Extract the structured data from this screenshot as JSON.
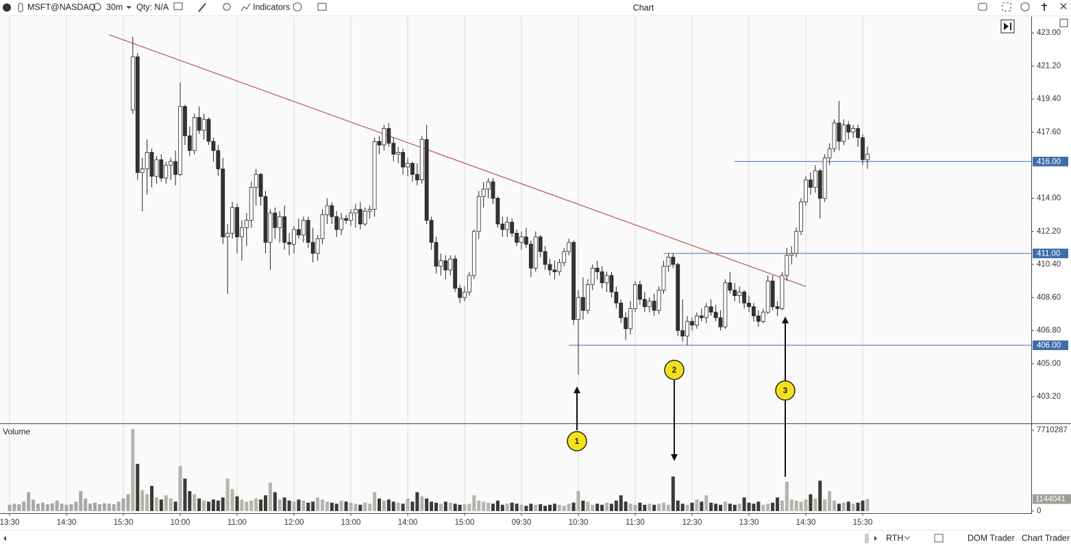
{
  "toolbar": {
    "symbol": "MSFT@NASDAQ",
    "interval": "30m",
    "qty": "Qty: N/A",
    "indicators": "Indicators",
    "title": "Chart"
  },
  "statusbar": {
    "session": "RTH",
    "dom": "DOM Trader",
    "trader": "Chart Trader"
  },
  "chart_data": {
    "type": "candlestick",
    "volume_label": "Volume",
    "categories": [
      "13:30",
      null,
      null,
      null,
      null,
      null,
      null,
      null,
      null,
      null,
      null,
      null,
      "14:30",
      null,
      null,
      null,
      null,
      null,
      null,
      null,
      null,
      null,
      null,
      null,
      "15:30",
      null,
      null,
      null,
      null,
      null,
      null,
      null,
      null,
      null,
      null,
      null,
      "10:00",
      null,
      null,
      null,
      null,
      null,
      null,
      null,
      null,
      null,
      null,
      null,
      "11:00",
      null,
      null,
      null,
      null,
      null,
      null,
      null,
      null,
      null,
      null,
      null,
      "12:00",
      null,
      null,
      null,
      null,
      null,
      null,
      null,
      null,
      null,
      null,
      null,
      "13:00",
      null,
      null,
      null,
      null,
      null,
      null,
      null,
      null,
      null,
      null,
      null,
      "14:00",
      null,
      null,
      null,
      null,
      null,
      null,
      null,
      null,
      null,
      null,
      null,
      "15:00",
      null,
      null,
      null,
      null,
      null,
      null,
      null,
      null,
      null,
      null,
      null,
      "09:30",
      null,
      null,
      null,
      null,
      null,
      null,
      null,
      null,
      null,
      null,
      null,
      "10:30",
      null,
      null,
      null,
      null,
      null,
      null,
      null,
      null,
      null,
      null,
      null,
      "11:30",
      null,
      null,
      null,
      null,
      null,
      null,
      null,
      null,
      null,
      null,
      null,
      "12:30",
      null,
      null,
      null,
      null,
      null,
      null,
      null,
      null,
      null,
      null,
      null,
      "13:30",
      null,
      null,
      null,
      null,
      null,
      null,
      null,
      null,
      null,
      null,
      null,
      "14:30",
      null,
      null,
      null,
      null,
      null,
      null,
      null,
      null,
      null,
      null,
      null,
      "15:30",
      null
    ],
    "open": [
      null,
      null,
      null,
      null,
      null,
      null,
      null,
      null,
      null,
      null,
      null,
      null,
      null,
      null,
      null,
      null,
      null,
      null,
      null,
      null,
      null,
      null,
      null,
      null,
      null,
      null,
      418.8,
      421.7,
      415.4,
      415.6,
      416.5,
      415.2,
      416.1,
      415.1,
      415.8,
      416.0,
      415.3,
      419.0,
      417.4,
      416.6,
      418.4,
      417.7,
      418.3,
      417.1,
      416.6,
      415.6,
      411.9,
      412.1,
      413.5,
      411.9,
      412.4,
      412.8,
      414.6,
      415.3,
      414.1,
      411.6,
      413.2,
      412.4,
      413.0,
      411.6,
      411.5,
      412.3,
      412.0,
      412.8,
      411.6,
      411.0,
      411.8,
      413.1,
      413.6,
      413.0,
      412.3,
      412.9,
      412.8,
      413.2,
      413.4,
      412.6,
      413.3,
      413.4,
      417.1,
      416.9,
      417.8,
      417.0,
      416.4,
      416.5,
      415.7,
      415.9,
      415.3,
      415.0,
      417.2,
      412.8,
      411.6,
      410.3,
      410.6,
      410.1,
      410.7,
      409.1,
      408.6,
      408.9,
      409.8,
      412.2,
      414.1,
      414.5,
      414.9,
      414.0,
      412.6,
      412.3,
      412.7,
      412.1,
      411.6,
      411.9,
      411.5,
      410.2,
      411.9,
      411.1,
      410.4,
      410.1,
      410.0,
      410.5,
      411.1,
      411.6,
      407.4,
      408.6,
      407.9,
      409.3,
      410.2,
      410.0,
      409.4,
      409.8,
      408.9,
      408.3,
      407.5,
      406.9,
      408.0,
      409.3,
      408.5,
      408.1,
      408.4,
      407.9,
      409.0,
      410.3,
      410.8,
      410.4,
      406.8,
      406.5,
      407.3,
      407.1,
      407.6,
      407.5,
      408.1,
      407.8,
      407.5,
      407.0,
      409.4,
      409.0,
      408.7,
      408.9,
      408.3,
      408.1,
      407.6,
      407.3,
      407.8,
      409.5,
      408.1,
      408.0,
      409.8,
      410.9,
      411.0,
      412.2,
      413.8,
      415.0,
      414.6,
      415.5,
      414.0,
      416.2,
      416.7,
      418.1,
      417.1,
      418.0,
      417.6,
      417.8,
      417.3,
      416.1
    ],
    "high": [
      null,
      null,
      null,
      null,
      null,
      null,
      null,
      null,
      null,
      null,
      null,
      null,
      null,
      null,
      null,
      null,
      null,
      null,
      null,
      null,
      null,
      null,
      null,
      null,
      null,
      null,
      422.8,
      421.9,
      416.2,
      417.2,
      416.7,
      416.3,
      416.4,
      416.0,
      416.2,
      416.6,
      420.3,
      419.1,
      417.9,
      418.6,
      419.0,
      418.6,
      418.4,
      417.3,
      416.9,
      416.2,
      412.6,
      413.8,
      413.7,
      412.8,
      413.2,
      414.9,
      415.6,
      415.4,
      414.4,
      413.4,
      413.5,
      413.3,
      413.6,
      412.1,
      412.5,
      412.9,
      413.0,
      413.0,
      412.4,
      412.0,
      413.4,
      414.0,
      413.8,
      413.3,
      413.2,
      413.1,
      413.4,
      413.7,
      413.8,
      413.5,
      413.6,
      417.3,
      417.4,
      418.0,
      418.1,
      417.3,
      416.8,
      416.7,
      416.2,
      416.0,
      415.9,
      417.4,
      418.0,
      413.0,
      411.9,
      411.0,
      410.9,
      410.9,
      410.9,
      409.3,
      409.2,
      410.0,
      412.3,
      414.4,
      414.9,
      415.1,
      415.1,
      414.1,
      413.0,
      413.0,
      412.9,
      412.3,
      412.2,
      412.4,
      411.7,
      412.2,
      412.0,
      411.4,
      410.7,
      410.6,
      410.7,
      411.3,
      411.8,
      411.7,
      409.0,
      409.7,
      409.6,
      410.4,
      410.6,
      410.3,
      410.0,
      410.0,
      409.2,
      408.5,
      407.8,
      408.4,
      409.5,
      409.5,
      408.9,
      408.6,
      408.8,
      409.2,
      410.6,
      411.0,
      411.0,
      410.5,
      408.5,
      407.6,
      407.5,
      407.8,
      408.0,
      408.3,
      408.5,
      408.2,
      407.9,
      409.6,
      410.0,
      409.4,
      409.2,
      409.0,
      408.7,
      408.3,
      407.9,
      408.0,
      409.8,
      409.8,
      408.4,
      410.0,
      411.3,
      411.4,
      412.4,
      414.0,
      415.2,
      415.4,
      415.8,
      415.6,
      416.4,
      417.0,
      418.3,
      419.3,
      418.3,
      418.2,
      418.0,
      418.0,
      417.5,
      416.8
    ],
    "low": [
      null,
      null,
      null,
      null,
      null,
      null,
      null,
      null,
      null,
      null,
      null,
      null,
      null,
      null,
      null,
      null,
      null,
      null,
      null,
      null,
      null,
      null,
      null,
      null,
      null,
      null,
      418.6,
      415.0,
      413.3,
      414.2,
      414.6,
      414.8,
      414.9,
      414.8,
      415.0,
      414.7,
      415.2,
      416.9,
      416.3,
      416.4,
      417.5,
      417.2,
      416.9,
      416.0,
      415.2,
      411.5,
      408.8,
      411.8,
      411.0,
      410.6,
      411.4,
      412.4,
      413.6,
      413.6,
      411.0,
      410.1,
      411.8,
      411.6,
      411.2,
      410.9,
      411.0,
      411.8,
      411.6,
      411.3,
      410.5,
      410.6,
      411.5,
      412.6,
      412.6,
      411.9,
      412.0,
      412.6,
      412.5,
      412.4,
      412.3,
      412.5,
      412.9,
      413.0,
      416.4,
      416.6,
      416.8,
      416.0,
      415.9,
      415.3,
      415.2,
      414.9,
      414.7,
      414.8,
      412.6,
      411.2,
      409.9,
      409.8,
      409.6,
      409.8,
      408.9,
      408.3,
      408.4,
      408.7,
      409.6,
      411.8,
      413.5,
      414.0,
      413.7,
      412.4,
      411.9,
      411.9,
      411.9,
      411.4,
      411.2,
      411.3,
      409.7,
      410.0,
      410.8,
      410.1,
      409.8,
      409.6,
      409.8,
      410.3,
      410.9,
      407.1,
      404.4,
      407.4,
      407.7,
      409.0,
      409.6,
      409.1,
      408.9,
      408.6,
      408.0,
      407.2,
      406.3,
      406.6,
      407.8,
      408.2,
      407.8,
      407.8,
      407.6,
      407.7,
      408.8,
      410.0,
      410.2,
      406.5,
      406.2,
      406.0,
      406.8,
      406.9,
      407.3,
      407.2,
      407.6,
      407.3,
      406.8,
      406.9,
      408.8,
      408.4,
      408.3,
      408.0,
      407.8,
      407.3,
      407.0,
      407.2,
      407.7,
      407.9,
      407.6,
      407.9,
      409.5,
      410.4,
      410.8,
      412.0,
      413.6,
      414.2,
      414.3,
      412.9,
      413.8,
      415.8,
      416.5,
      416.6,
      416.9,
      417.2,
      417.3,
      416.8,
      415.8,
      415.6
    ],
    "close": [
      null,
      null,
      null,
      null,
      null,
      null,
      null,
      null,
      null,
      null,
      null,
      null,
      null,
      null,
      null,
      null,
      null,
      null,
      null,
      null,
      null,
      null,
      null,
      null,
      null,
      null,
      421.7,
      415.4,
      415.6,
      416.5,
      415.2,
      416.1,
      415.1,
      415.8,
      416.0,
      415.3,
      419.0,
      417.4,
      416.6,
      418.4,
      417.7,
      418.3,
      417.1,
      416.6,
      415.6,
      411.9,
      412.1,
      413.5,
      411.9,
      412.4,
      412.8,
      414.6,
      415.3,
      414.1,
      411.6,
      413.2,
      412.4,
      413.0,
      411.6,
      411.5,
      412.3,
      412.0,
      412.8,
      411.6,
      411.0,
      411.8,
      413.1,
      413.6,
      413.0,
      412.3,
      412.9,
      412.8,
      413.2,
      413.4,
      412.6,
      413.3,
      413.4,
      417.1,
      416.9,
      417.8,
      417.0,
      416.4,
      416.5,
      415.7,
      415.9,
      415.3,
      415.0,
      417.2,
      412.8,
      411.6,
      410.3,
      410.6,
      410.1,
      410.7,
      409.1,
      408.6,
      408.9,
      409.8,
      412.2,
      414.1,
      414.5,
      414.9,
      414.0,
      412.6,
      412.3,
      412.7,
      412.1,
      411.6,
      411.9,
      411.5,
      410.2,
      411.9,
      411.1,
      410.4,
      410.1,
      410.0,
      410.5,
      411.1,
      411.6,
      407.4,
      408.6,
      407.9,
      409.3,
      410.2,
      410.0,
      409.4,
      409.8,
      408.9,
      408.3,
      407.5,
      406.9,
      408.0,
      409.3,
      408.5,
      408.1,
      408.4,
      407.9,
      409.0,
      410.3,
      410.8,
      410.4,
      406.8,
      406.5,
      407.3,
      407.1,
      407.6,
      407.5,
      408.1,
      407.8,
      407.5,
      407.0,
      409.4,
      409.0,
      408.7,
      408.9,
      408.3,
      408.1,
      407.6,
      407.3,
      407.8,
      409.5,
      408.1,
      408.0,
      409.8,
      410.9,
      411.0,
      412.2,
      413.8,
      415.0,
      414.6,
      415.5,
      414.0,
      416.2,
      416.7,
      418.1,
      417.1,
      418.0,
      417.6,
      417.8,
      417.3,
      416.1,
      416.4
    ],
    "volume": [
      600000,
      700000,
      650000,
      900000,
      1800000,
      1100000,
      700000,
      800000,
      650000,
      750000,
      1000000,
      700000,
      600000,
      650000,
      900000,
      1900000,
      1200000,
      700000,
      800000,
      650000,
      750000,
      700000,
      650000,
      900000,
      1200000,
      1600000,
      7800000,
      4500000,
      2000000,
      1600000,
      2400000,
      1300000,
      1100000,
      1500000,
      1200000,
      900000,
      4300000,
      3100000,
      1900000,
      1600000,
      1200000,
      1000000,
      900000,
      1100000,
      1000000,
      1300000,
      3100000,
      2100000,
      1400000,
      1100000,
      900000,
      1000000,
      1200000,
      1100000,
      1500000,
      2700000,
      1800000,
      1100000,
      1300000,
      1000000,
      900000,
      1100000,
      1000000,
      800000,
      900000,
      1300000,
      1100000,
      900000,
      800000,
      700000,
      1000000,
      900000,
      800000,
      700000,
      600000,
      800000,
      700000,
      1800000,
      1200000,
      1000000,
      1100000,
      900000,
      800000,
      700000,
      1200000,
      900000,
      1800000,
      1400000,
      1200000,
      900000,
      800000,
      700000,
      900000,
      800000,
      700000,
      600000,
      650000,
      700000,
      1500000,
      1000000,
      900000,
      800000,
      700000,
      1000000,
      600000,
      700000,
      800000,
      700000,
      600000,
      500000,
      700000,
      600000,
      650000,
      500000,
      600000,
      700000,
      600000,
      500000,
      700000,
      800000,
      1900000,
      1000000,
      900000,
      600000,
      700000,
      600000,
      800000,
      700000,
      1000000,
      1500000,
      900000,
      700000,
      600000,
      800000,
      600000,
      700000,
      600000,
      700000,
      800000,
      600000,
      3300000,
      1000000,
      700000,
      600000,
      800000,
      1100000,
      900000,
      1500000,
      800000,
      700000,
      600000,
      900000,
      700000,
      600000,
      700000,
      1300000,
      800000,
      700000,
      900000,
      600000,
      700000,
      800000,
      1300000,
      1000000,
      2800000,
      1100000,
      1000000,
      900000,
      1100000,
      1600000,
      1200000,
      2900000,
      1100000,
      1900000,
      1000000,
      700000,
      800000,
      900000,
      700000,
      800000,
      1000000,
      1144041
    ],
    "ylim": [
      401.75,
      423.86
    ],
    "yticks": [
      {
        "value": 423,
        "label": "423.00"
      },
      {
        "value": 421.2,
        "label": "421.20"
      },
      {
        "value": 419.4,
        "label": "419.40"
      },
      {
        "value": 417.6,
        "label": "417.60"
      },
      {
        "value": 414,
        "label": "414.00"
      },
      {
        "value": 412.2,
        "label": "412.20"
      },
      {
        "value": 410.4,
        "label": "410.40"
      },
      {
        "value": 408.6,
        "label": "408.60"
      },
      {
        "value": 406.8,
        "label": "406.80"
      },
      {
        "value": 405,
        "label": "405.00"
      },
      {
        "value": 403.2,
        "label": "403.20"
      }
    ],
    "vlim": [
      0,
      8233000
    ],
    "vticks": [
      0,
      7710287
    ],
    "xgrid": true,
    "up_color": "#ffffff",
    "down_color": "#333333",
    "line_color": "#222222",
    "levels": [
      {
        "value": 416,
        "label": "416.00",
        "from": 153
      },
      {
        "value": 411,
        "label": "411.00",
        "from": 138
      },
      {
        "value": 406,
        "label": "406.00",
        "from": 118
      }
    ],
    "level_color": "#3e6ea8",
    "trendline": [
      [
        21,
        422.9
      ],
      [
        168,
        409.2
      ]
    ],
    "trendline_color": "#c0504d",
    "annotations": [
      "1",
      "2",
      "3"
    ]
  }
}
